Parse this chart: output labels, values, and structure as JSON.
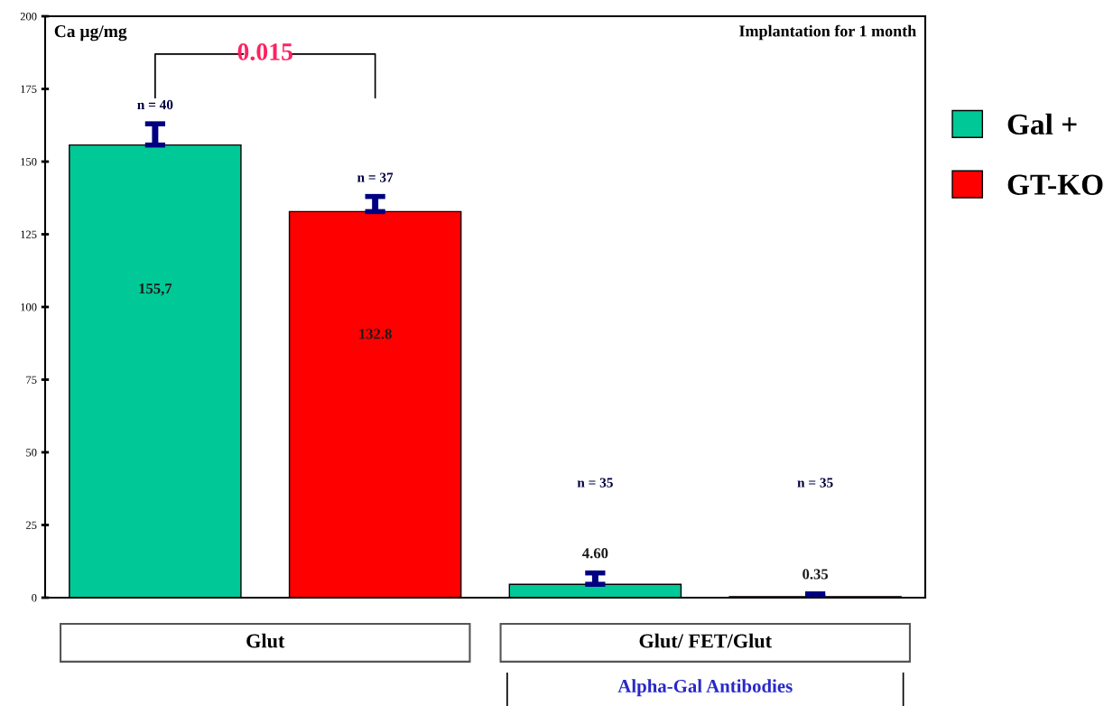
{
  "chart_data": {
    "type": "bar",
    "title": "Implantation for 1 month",
    "ylabel": "Ca µg/mg",
    "categories": [
      null,
      null,
      null,
      null
    ],
    "series": [
      {
        "name": "Gal +",
        "color": "#00c896",
        "values": [
          155.7,
          null,
          4.6,
          null
        ],
        "errors": [
          [
            155.7,
            163
          ],
          null,
          [
            4.6,
            8.5
          ],
          null
        ],
        "value_labels": [
          "155,7",
          null,
          "4.60",
          null
        ]
      },
      {
        "name": "GT-KO",
        "color": "#ff0000",
        "colors": [
          "#ff0000",
          "#ff0000",
          "#ff0000",
          "#d83c10"
        ],
        "values": [
          null,
          132.8,
          null,
          0.35
        ],
        "errors": [
          null,
          [
            132.8,
            138
          ],
          null,
          [
            0.35,
            1.3
          ]
        ],
        "value_labels": [
          null,
          "132.8",
          null,
          "0.35"
        ]
      }
    ],
    "ylim": [
      0,
      200
    ],
    "yticks": [
      0,
      25,
      50,
      75,
      100,
      125,
      150,
      175,
      200
    ],
    "legend": "right",
    "grid": false,
    "annotations": [
      "n = 40",
      "n = 37",
      "n = 35",
      "n = 35",
      "0.015",
      "Glut",
      "Glut/ FET/Glut",
      "Alpha-Gal Antibodies"
    ]
  }
}
